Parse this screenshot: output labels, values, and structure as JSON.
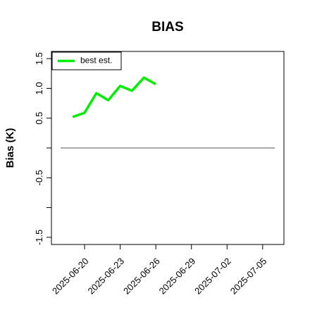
{
  "chart_data": {
    "type": "line",
    "title": "BIAS",
    "y_label": "Bias (K)",
    "x": [
      "2025-06-19",
      "2025-06-20",
      "2025-06-21",
      "2025-06-22",
      "2025-06-23",
      "2025-06-24",
      "2025-06-25",
      "2025-06-26"
    ],
    "series": [
      {
        "name": "best est.",
        "color": "#00ee00",
        "values": [
          0.52,
          0.59,
          0.92,
          0.8,
          1.04,
          0.96,
          1.18,
          1.07
        ]
      }
    ],
    "xlim": [
      "2025-06-17T05:00",
      "2025-07-06T19:00"
    ],
    "xticks": [
      "2025-06-20",
      "2025-06-23",
      "2025-06-26",
      "2025-06-29",
      "2025-07-02",
      "2025-07-05"
    ],
    "ylim": [
      -1.62,
      1.62
    ],
    "yticks": [
      {
        "value": -1.5,
        "label": "-1.5"
      },
      {
        "value": -1.0,
        "label": null
      },
      {
        "value": -0.5,
        "label": "-0.5"
      },
      {
        "value": 0,
        "label": null
      },
      {
        "value": 0.5,
        "label": "0.5"
      },
      {
        "value": 1.0,
        "label": "1.0"
      },
      {
        "value": 1.5,
        "label": "1.5"
      }
    ],
    "reference_line": {
      "y": 0,
      "color": "#777777"
    },
    "legend": "top-left"
  }
}
